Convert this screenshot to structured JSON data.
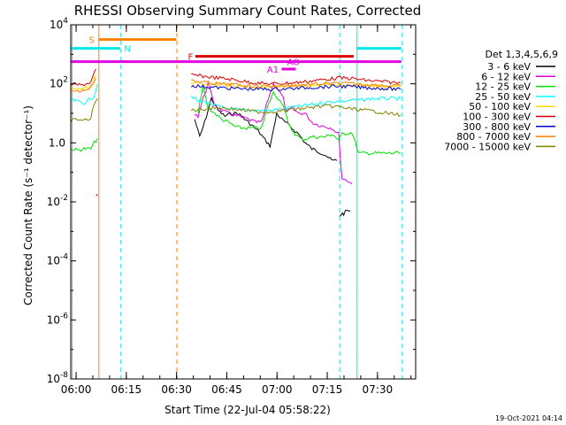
{
  "chart_data": {
    "type": "line",
    "title": "RHESSI Observing Summary Count Rates, Corrected",
    "xlabel": "Start Time (22-Jul-04 05:58:22)",
    "ylabel": "Corrected Count Rate (s⁻¹ detector⁻¹)",
    "footer": "19-Oct-2021 04:14",
    "x_unit": "minutes after 05:58:22",
    "xlim": [
      0,
      103
    ],
    "ylim_log10": [
      -8,
      4
    ],
    "log_y": true,
    "grid": false,
    "legend_position": "right",
    "x_ticks": [
      {
        "label": "06:00",
        "value": 1.6
      },
      {
        "label": "06:15",
        "value": 16.6
      },
      {
        "label": "06:30",
        "value": 31.6
      },
      {
        "label": "06:45",
        "value": 46.6
      },
      {
        "label": "07:00",
        "value": 61.6
      },
      {
        "label": "07:15",
        "value": 76.6
      },
      {
        "label": "07:30",
        "value": 91.6
      }
    ],
    "y_ticks": [
      {
        "base": "10",
        "exp": "4",
        "value": 4
      },
      {
        "base": "10",
        "exp": "2",
        "value": 2
      },
      {
        "base": "1.0",
        "exp": "",
        "value": 0
      },
      {
        "base": "10",
        "exp": "-2",
        "value": -2
      },
      {
        "base": "10",
        "exp": "-4",
        "value": -4
      },
      {
        "base": "10",
        "exp": "-6",
        "value": -6
      },
      {
        "base": "10",
        "exp": "-8",
        "value": -8
      }
    ],
    "legend_title": "Det 1,3,4,5,6,9",
    "series": [
      {
        "name": "3 - 6 keV",
        "color": "#000000",
        "segments": [
          [
            [
              37,
              0.8
            ],
            [
              38.5,
              0.2
            ],
            [
              40,
              0.7
            ],
            [
              42,
              1.5
            ],
            [
              44,
              1.1
            ],
            [
              46,
              0.9
            ],
            [
              48,
              1.0
            ],
            [
              50,
              1.0
            ],
            [
              52,
              0.8
            ],
            [
              54,
              0.6
            ],
            [
              56,
              0.4
            ],
            [
              58,
              0.1
            ],
            [
              59.5,
              -0.1
            ],
            [
              60.5,
              0.4
            ],
            [
              61.5,
              1.0
            ],
            [
              63,
              0.8
            ],
            [
              64,
              0.7
            ],
            [
              66,
              0.5
            ],
            [
              68,
              0.3
            ],
            [
              70,
              0.0
            ],
            [
              72,
              -0.2
            ],
            [
              74,
              -0.3
            ],
            [
              76,
              -0.4
            ],
            [
              78,
              -0.6
            ],
            [
              79.5,
              -0.6
            ]
          ],
          [
            [
              80.3,
              -2.5
            ],
            [
              80.8,
              -2.4
            ],
            [
              81.5,
              -2.4
            ],
            [
              82.5,
              -2.3
            ],
            [
              83.5,
              -2.3
            ]
          ]
        ]
      },
      {
        "name": "6 - 12 keV",
        "color": "#e000e0",
        "segments": [
          [
            [
              7.6,
              -1.8
            ],
            [
              8.0,
              -1.8
            ]
          ],
          [
            [
              37,
              1.0
            ],
            [
              38,
              0.9
            ],
            [
              39.5,
              1.5
            ],
            [
              41,
              2.0
            ],
            [
              43,
              1.3
            ],
            [
              45,
              1.1
            ],
            [
              47,
              1.0
            ],
            [
              50,
              0.9
            ],
            [
              53,
              0.8
            ],
            [
              55,
              0.7
            ],
            [
              57,
              0.7
            ],
            [
              59,
              1.5
            ],
            [
              60.5,
              2.0
            ],
            [
              62,
              1.8
            ],
            [
              63.5,
              1.5
            ],
            [
              64.5,
              1.0
            ],
            [
              66,
              1.2
            ],
            [
              68,
              1.0
            ],
            [
              70,
              1.0
            ],
            [
              72,
              0.7
            ],
            [
              74,
              0.6
            ],
            [
              76,
              0.55
            ],
            [
              78,
              0.5
            ],
            [
              80,
              0.3
            ],
            [
              81,
              -1.2
            ],
            [
              83,
              -1.3
            ],
            [
              84,
              -1.4
            ]
          ]
        ]
      },
      {
        "name": "12 - 25 keV",
        "color": "#00e000",
        "segments": [
          [
            [
              0,
              -0.2
            ],
            [
              2,
              -0.25
            ],
            [
              4,
              -0.2
            ],
            [
              6,
              -0.2
            ],
            [
              7,
              0.0
            ],
            [
              8,
              0.15
            ]
          ],
          [
            [
              38,
              1.0
            ],
            [
              39.5,
              1.9
            ],
            [
              41,
              1.2
            ],
            [
              43,
              1.0
            ],
            [
              45,
              0.8
            ],
            [
              47,
              0.7
            ],
            [
              49,
              0.55
            ],
            [
              51,
              0.5
            ],
            [
              53,
              0.5
            ],
            [
              55,
              0.5
            ],
            [
              57,
              0.5
            ],
            [
              59,
              1.3
            ],
            [
              60.5,
              1.7
            ],
            [
              62,
              1.5
            ],
            [
              63.5,
              1.3
            ],
            [
              65,
              0.6
            ],
            [
              67,
              0.3
            ],
            [
              69,
              0.1
            ],
            [
              70.5,
              0.15
            ],
            [
              72,
              0.2
            ],
            [
              74,
              0.2
            ],
            [
              76,
              0.2
            ],
            [
              78,
              0.3
            ],
            [
              80,
              0.1
            ],
            [
              81,
              0.3
            ],
            [
              84,
              0.35
            ],
            [
              86,
              -0.35
            ],
            [
              90,
              -0.35
            ],
            [
              95,
              -0.35
            ],
            [
              98.5,
              -0.35
            ]
          ]
        ]
      },
      {
        "name": "25 - 50 keV",
        "color": "#00ffff",
        "segments": [
          [
            [
              0,
              1.45
            ],
            [
              2,
              1.4
            ],
            [
              4,
              1.35
            ],
            [
              6,
              1.5
            ],
            [
              7,
              1.6
            ],
            [
              8,
              2.0
            ]
          ],
          [
            [
              36,
              1.6
            ],
            [
              38,
              1.4
            ],
            [
              40,
              1.4
            ],
            [
              42,
              1.3
            ],
            [
              45,
              1.2
            ],
            [
              48,
              1.15
            ],
            [
              51,
              1.1
            ],
            [
              54,
              1.1
            ],
            [
              57,
              1.1
            ],
            [
              60,
              1.1
            ],
            [
              63,
              1.15
            ],
            [
              66,
              1.2
            ],
            [
              69,
              1.25
            ],
            [
              72,
              1.3
            ],
            [
              75,
              1.35
            ],
            [
              78,
              1.4
            ],
            [
              81,
              1.4
            ],
            [
              84,
              1.45
            ],
            [
              87,
              1.45
            ],
            [
              90,
              1.5
            ],
            [
              93,
              1.5
            ],
            [
              96,
              1.5
            ],
            [
              98.5,
              1.5
            ]
          ]
        ]
      },
      {
        "name": "50 - 100 keV",
        "color": "#ffd700",
        "segments": [
          [
            [
              0,
              1.85
            ],
            [
              3,
              1.8
            ],
            [
              6,
              1.9
            ],
            [
              7.5,
              2.3
            ]
          ],
          [
            [
              36,
              2.05
            ],
            [
              40,
              2.0
            ],
            [
              44,
              1.97
            ],
            [
              48,
              1.95
            ],
            [
              52,
              1.92
            ],
            [
              56,
              1.9
            ],
            [
              60,
              1.9
            ],
            [
              64,
              1.9
            ],
            [
              68,
              1.92
            ],
            [
              72,
              1.95
            ],
            [
              76,
              1.97
            ],
            [
              80,
              1.98
            ],
            [
              84,
              1.97
            ],
            [
              88,
              1.95
            ],
            [
              92,
              1.93
            ],
            [
              96,
              1.92
            ],
            [
              98.5,
              1.9
            ]
          ]
        ]
      },
      {
        "name": "100 - 300 keV",
        "color": "#dd0000",
        "segments": [
          [
            [
              0,
              2.0
            ],
            [
              3,
              1.95
            ],
            [
              6,
              2.05
            ],
            [
              7.5,
              2.5
            ]
          ],
          [
            [
              36,
              2.3
            ],
            [
              40,
              2.25
            ],
            [
              44,
              2.2
            ],
            [
              48,
              2.15
            ],
            [
              52,
              2.08
            ],
            [
              56,
              2.02
            ],
            [
              60,
              2.0
            ],
            [
              64,
              2.02
            ],
            [
              68,
              2.05
            ],
            [
              72,
              2.1
            ],
            [
              76,
              2.15
            ],
            [
              80,
              2.2
            ],
            [
              84,
              2.18
            ],
            [
              88,
              2.12
            ],
            [
              92,
              2.08
            ],
            [
              96,
              2.05
            ],
            [
              98.5,
              2.02
            ]
          ]
        ]
      },
      {
        "name": "300 - 800 keV",
        "color": "#0000cc",
        "segments": [
          [
            [
              36,
              1.95
            ],
            [
              40,
              1.9
            ],
            [
              44,
              1.87
            ],
            [
              48,
              1.85
            ],
            [
              52,
              1.83
            ],
            [
              56,
              1.82
            ],
            [
              60,
              1.82
            ],
            [
              64,
              1.83
            ],
            [
              68,
              1.85
            ],
            [
              72,
              1.88
            ],
            [
              76,
              1.9
            ],
            [
              80,
              1.92
            ],
            [
              84,
              1.9
            ],
            [
              88,
              1.87
            ],
            [
              92,
              1.85
            ],
            [
              96,
              1.83
            ],
            [
              98.5,
              1.8
            ]
          ]
        ]
      },
      {
        "name": "800 - 7000 keV",
        "color": "#ff8000",
        "segments": [
          [
            [
              0,
              1.8
            ],
            [
              3,
              1.75
            ],
            [
              6,
              1.9
            ],
            [
              7.5,
              2.2
            ]
          ],
          [
            [
              36,
              2.1
            ],
            [
              40,
              2.05
            ],
            [
              44,
              2.0
            ],
            [
              48,
              1.98
            ],
            [
              52,
              1.95
            ],
            [
              56,
              1.93
            ],
            [
              60,
              1.92
            ],
            [
              64,
              1.93
            ],
            [
              68,
              1.95
            ],
            [
              72,
              1.98
            ],
            [
              76,
              2.0
            ],
            [
              80,
              2.02
            ],
            [
              84,
              2.0
            ],
            [
              88,
              1.98
            ],
            [
              92,
              1.95
            ],
            [
              96,
              1.93
            ],
            [
              98.5,
              1.92
            ]
          ]
        ]
      },
      {
        "name": "7000 - 15000 keV",
        "color": "#808000",
        "segments": [
          [
            [
              0,
              0.75
            ],
            [
              2,
              0.8
            ],
            [
              4,
              0.75
            ],
            [
              6,
              0.85
            ],
            [
              7,
              1.3
            ],
            [
              8,
              1.5
            ]
          ],
          [
            [
              36,
              1.1
            ],
            [
              40,
              1.15
            ],
            [
              44,
              1.2
            ],
            [
              48,
              1.15
            ],
            [
              52,
              1.1
            ],
            [
              56,
              1.05
            ],
            [
              60,
              1.05
            ],
            [
              64,
              1.1
            ],
            [
              68,
              1.15
            ],
            [
              72,
              1.2
            ],
            [
              76,
              1.25
            ],
            [
              80,
              1.22
            ],
            [
              84,
              1.15
            ],
            [
              88,
              1.1
            ],
            [
              92,
              1.05
            ],
            [
              96,
              0.98
            ],
            [
              98.5,
              0.95
            ]
          ]
        ]
      }
    ],
    "flag_bars": [
      {
        "label": "S",
        "color": "#ff8000",
        "x_start": 8.3,
        "x_end": 31.5,
        "y": 3.5,
        "label_x": 5.4
      },
      {
        "label": "N",
        "color": "#00e8e8",
        "x_start": 0,
        "x_end": 14.8,
        "y": 3.2,
        "label_x": 15.9
      },
      {
        "label": "",
        "color": "#00e8e8",
        "x_start": 85.3,
        "x_end": 98.7,
        "y": 3.2
      },
      {
        "label": "F",
        "color": "#dd0000",
        "x_start": 37.2,
        "x_end": 84.5,
        "y": 2.93,
        "label_x": 35.0
      },
      {
        "label": "AO",
        "color": "#e000e0",
        "x_start": 0,
        "x_end": 98.7,
        "y": 2.75,
        "label_x": 64.6
      },
      {
        "label": "A1",
        "color": "#e000e0",
        "x_start": 63.0,
        "x_end": 67.2,
        "y": 2.5,
        "label_x": 58.6
      }
    ],
    "vlines": [
      {
        "x": 8.4,
        "color": "#ff8000",
        "style": "solid"
      },
      {
        "x": 15.0,
        "color": "#00e8e8",
        "style": "dashed"
      },
      {
        "x": 31.7,
        "color": "#ff8000",
        "style": "dashed"
      },
      {
        "x": 80.3,
        "color": "#00e8e8",
        "style": "dashed"
      },
      {
        "x": 85.5,
        "color": "#00e8e8",
        "style": "solid"
      },
      {
        "x": 99.0,
        "color": "#00e8e8",
        "style": "dashed"
      },
      {
        "x": 0.4,
        "color": "#00e8e8",
        "style": "solid"
      }
    ]
  }
}
